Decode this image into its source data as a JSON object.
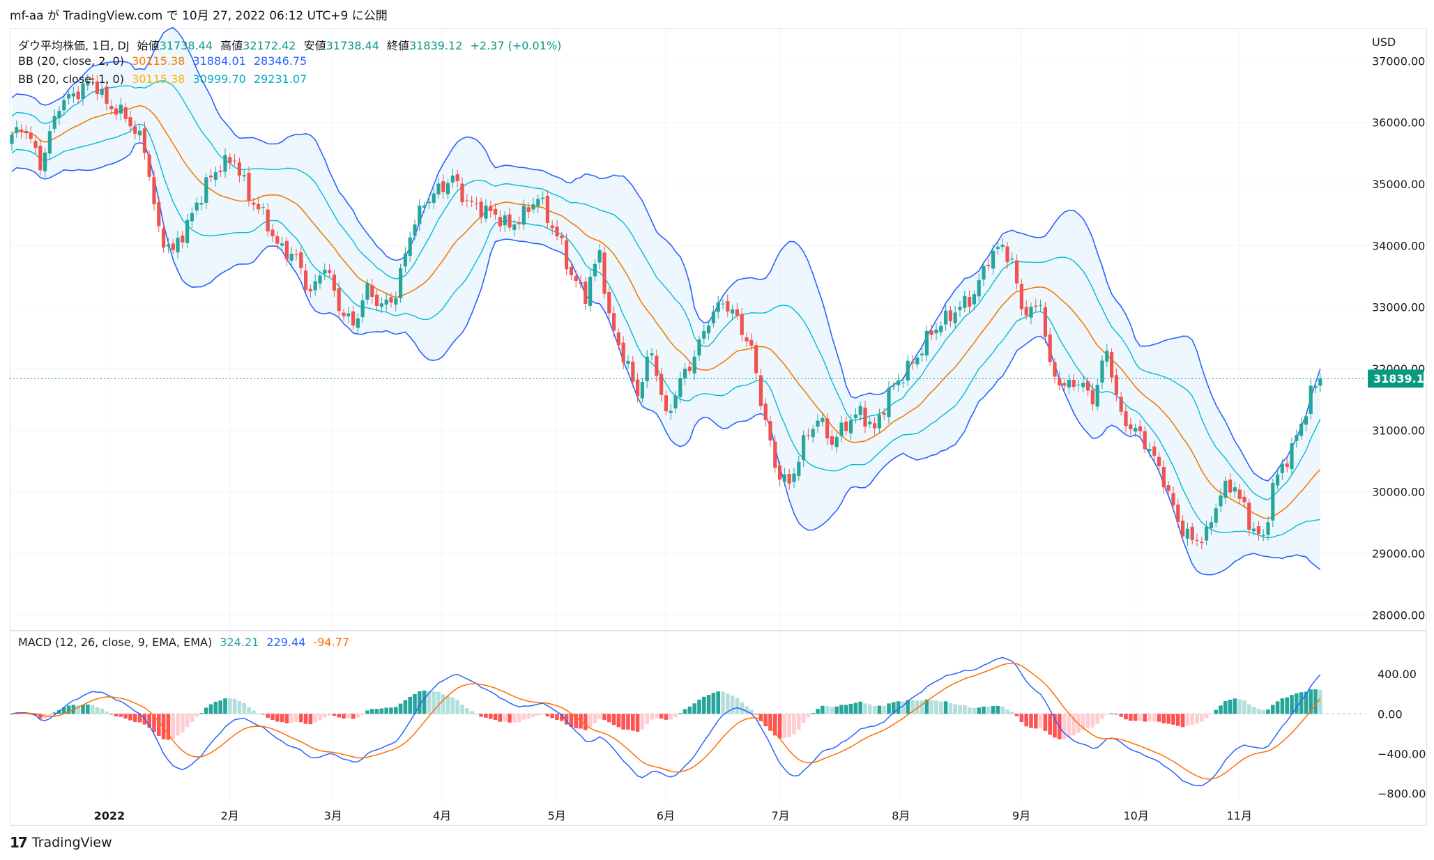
{
  "header": {
    "publisher": "mf-aa が TradingView.com で 10月 27, 2022 06:12 UTC+9 に公開"
  },
  "footer": {
    "brand": "TradingView",
    "logo": "tradingview-logo"
  },
  "legend": {
    "main": {
      "title": "ダウ平均株価, 1日, DJ",
      "open_label": "始値",
      "open": "31738.44",
      "high_label": "高値",
      "high": "32172.42",
      "low_label": "安値",
      "low": "31738.44",
      "close_label": "終値",
      "close": "31839.12",
      "change": "+2.37 (+0.01%)"
    },
    "bb2": {
      "title": "BB (20, close, 2, 0)",
      "basis": "30115.38",
      "upper": "31884.01",
      "lower": "28346.75"
    },
    "bb1": {
      "title": "BB (20, close, 1, 0)",
      "basis": "30115.38",
      "upper": "30999.70",
      "lower": "29231.07"
    },
    "macd": {
      "title": "MACD (12, 26, close, 9, EMA, EMA)",
      "hist": "324.21",
      "macd": "229.44",
      "signal": "-94.77"
    }
  },
  "colors": {
    "up": "#26a69a",
    "down": "#ef5350",
    "basis": "#f57c00",
    "bb2": "#2962ff",
    "bb1": "#00bcd4",
    "band_fill": "#e3f2fd",
    "hist_up_strong": "#26a69a",
    "hist_up_weak": "#b2dfdb",
    "hist_down_strong": "#ff5252",
    "hist_down_weak": "#ffcdd2",
    "macd_line": "#2962ff",
    "signal_line": "#ff6d00",
    "last_price": "#089981"
  },
  "chart_data": {
    "type": "candlestick",
    "currency": "USD",
    "last_price": "31839.12",
    "x_labels": [
      "2022",
      "2月",
      "3月",
      "4月",
      "5月",
      "6月",
      "7月",
      "8月",
      "9月",
      "10月",
      "11月"
    ],
    "y_ticks": [
      "37000.00",
      "36000.00",
      "35000.00",
      "34000.00",
      "33000.00",
      "32000.00",
      "31000.00",
      "30000.00",
      "29000.00",
      "28000.00"
    ],
    "y_range": [
      27800,
      37400
    ],
    "macd_ticks": [
      "400.00",
      "0.00",
      "−400.00",
      "−800.00"
    ],
    "macd_range": [
      -880,
      660
    ],
    "close_anchors": [
      [
        0,
        35800
      ],
      [
        3,
        35900
      ],
      [
        6,
        35300
      ],
      [
        10,
        36300
      ],
      [
        14,
        36500
      ],
      [
        17,
        36700
      ],
      [
        20,
        36300
      ],
      [
        24,
        36100
      ],
      [
        28,
        35600
      ],
      [
        31,
        34200
      ],
      [
        34,
        33900
      ],
      [
        38,
        34500
      ],
      [
        41,
        35000
      ],
      [
        44,
        35300
      ],
      [
        47,
        35400
      ],
      [
        50,
        34800
      ],
      [
        53,
        34500
      ],
      [
        56,
        34000
      ],
      [
        60,
        33800
      ],
      [
        63,
        33200
      ],
      [
        66,
        33700
      ],
      [
        69,
        33000
      ],
      [
        72,
        32700
      ],
      [
        75,
        33300
      ],
      [
        78,
        33000
      ],
      [
        81,
        33200
      ],
      [
        84,
        34200
      ],
      [
        87,
        34700
      ],
      [
        90,
        34900
      ],
      [
        93,
        35100
      ],
      [
        96,
        34700
      ],
      [
        99,
        34600
      ],
      [
        102,
        34500
      ],
      [
        105,
        34300
      ],
      [
        108,
        34500
      ],
      [
        111,
        34800
      ],
      [
        114,
        34300
      ],
      [
        116,
        34000
      ],
      [
        118,
        33500
      ],
      [
        121,
        33200
      ],
      [
        124,
        33900
      ],
      [
        126,
        32800
      ],
      [
        129,
        32200
      ],
      [
        132,
        31600
      ],
      [
        135,
        32300
      ],
      [
        138,
        31200
      ],
      [
        141,
        31800
      ],
      [
        144,
        32200
      ],
      [
        147,
        32800
      ],
      [
        150,
        33100
      ],
      [
        153,
        32800
      ],
      [
        156,
        32300
      ],
      [
        158,
        31500
      ],
      [
        161,
        30400
      ],
      [
        164,
        30100
      ],
      [
        167,
        30800
      ],
      [
        170,
        31200
      ],
      [
        173,
        30800
      ],
      [
        176,
        31100
      ],
      [
        179,
        31300
      ],
      [
        182,
        31000
      ],
      [
        185,
        31600
      ],
      [
        188,
        31900
      ],
      [
        191,
        32200
      ],
      [
        194,
        32600
      ],
      [
        197,
        32800
      ],
      [
        200,
        33000
      ],
      [
        203,
        33200
      ],
      [
        206,
        33800
      ],
      [
        209,
        34000
      ],
      [
        211,
        33700
      ],
      [
        213,
        33000
      ],
      [
        215,
        32900
      ],
      [
        217,
        33100
      ],
      [
        219,
        32000
      ],
      [
        222,
        31700
      ],
      [
        225,
        31800
      ],
      [
        228,
        31500
      ],
      [
        231,
        32300
      ],
      [
        234,
        31200
      ],
      [
        237,
        31000
      ],
      [
        240,
        30700
      ],
      [
        243,
        30200
      ],
      [
        246,
        29500
      ],
      [
        249,
        29200
      ],
      [
        252,
        29300
      ],
      [
        255,
        30000
      ],
      [
        258,
        30100
      ],
      [
        261,
        29500
      ],
      [
        264,
        29200
      ],
      [
        266,
        30100
      ],
      [
        268,
        30400
      ],
      [
        270,
        30700
      ],
      [
        272,
        31100
      ],
      [
        274,
        31600
      ],
      [
        276,
        31839
      ]
    ]
  }
}
